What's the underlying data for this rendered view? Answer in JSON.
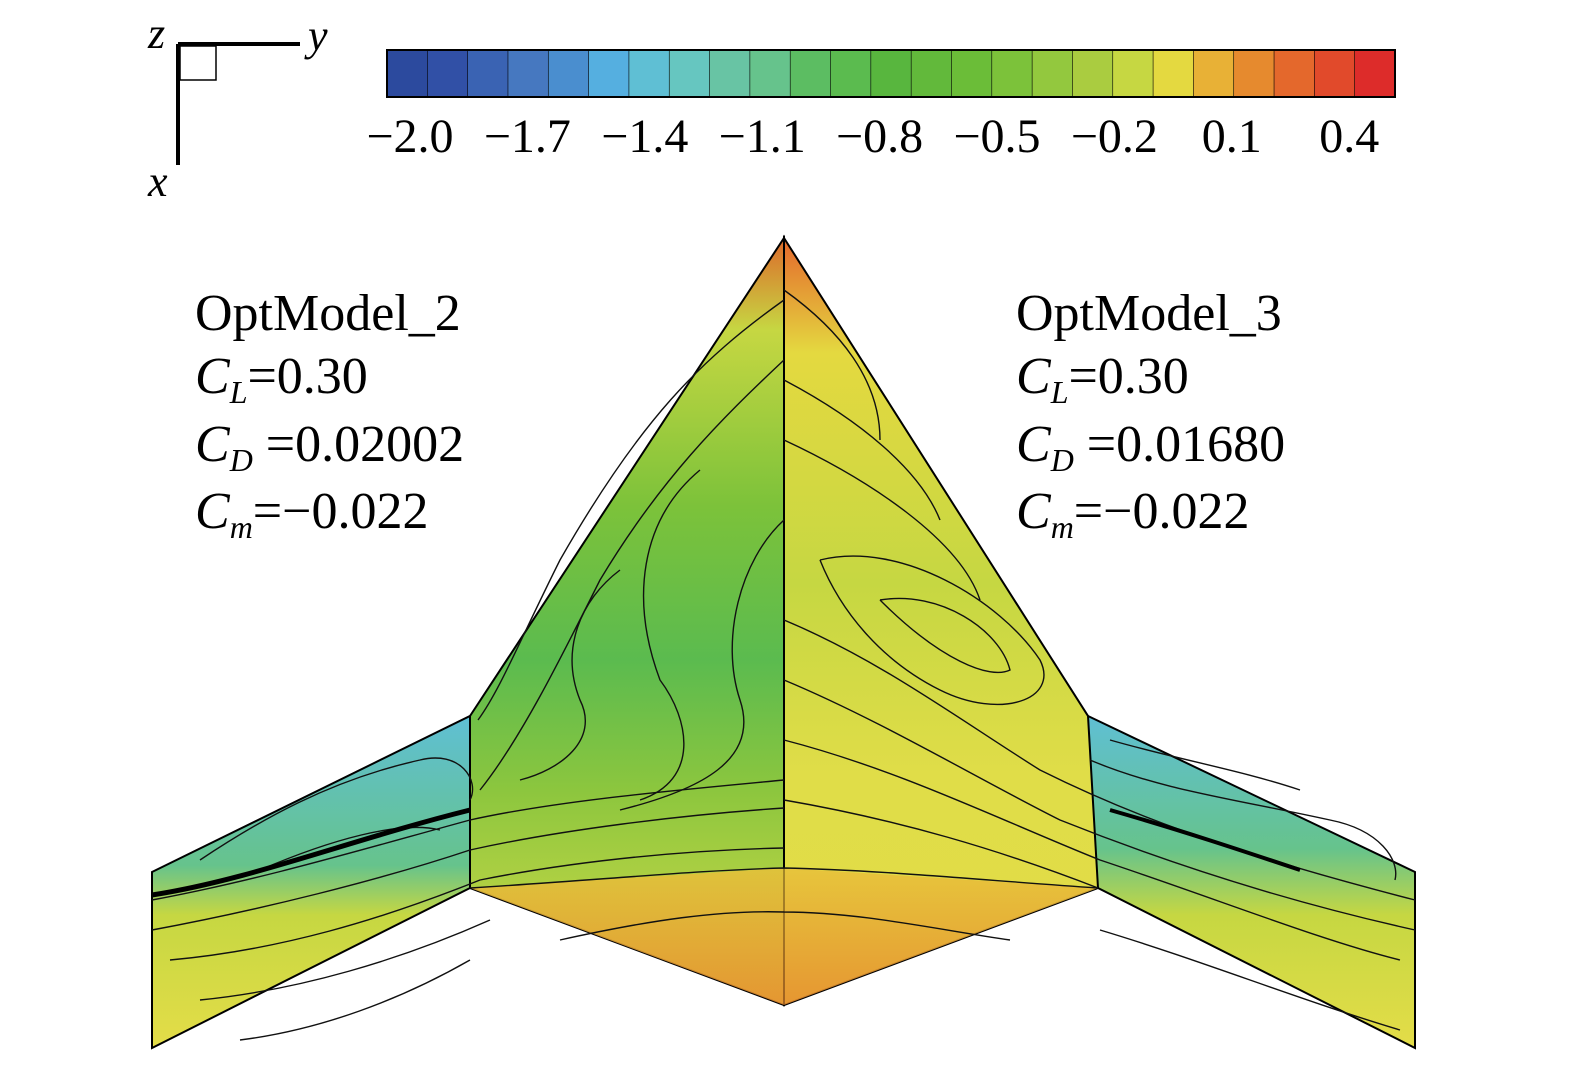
{
  "axes_triad": {
    "z": "z",
    "y": "y",
    "x": "x"
  },
  "colorbar": {
    "ticks": [
      "−2.0",
      "−1.7",
      "−1.4",
      "−1.1",
      "−0.8",
      "−0.5",
      "−0.2",
      "0.1",
      "0.4"
    ],
    "colors": [
      "#2c4a9e",
      "#3150a6",
      "#3a63b3",
      "#4678c0",
      "#4a8ecf",
      "#55afe0",
      "#5fbfd4",
      "#66c6c0",
      "#68c4a4",
      "#66c38c",
      "#5cbd62",
      "#5bbb4f",
      "#58b63e",
      "#62b93b",
      "#6bbd38",
      "#7cc23a",
      "#93c83e",
      "#aacc40",
      "#c6d742",
      "#e4d940",
      "#e8b136",
      "#e68a2e",
      "#e4682c",
      "#e14a2b",
      "#dd2c2a"
    ]
  },
  "left_panel": {
    "model": "OptModel_2",
    "cl_sym": "C",
    "cl_sub": "L",
    "cl_val": "=0.30",
    "cd_sym": "C",
    "cd_sub": "D",
    "cd_val": " =0.02002",
    "cm_sym": "C",
    "cm_sub": "m",
    "cm_val": "=−0.022"
  },
  "right_panel": {
    "model": "OptModel_3",
    "cl_sym": "C",
    "cl_sub": "L",
    "cl_val": "=0.30",
    "cd_sym": "C",
    "cd_sub": "D",
    "cd_val": " =0.01680",
    "cm_sym": "C",
    "cm_sub": "m",
    "cm_val": "=−0.022"
  }
}
